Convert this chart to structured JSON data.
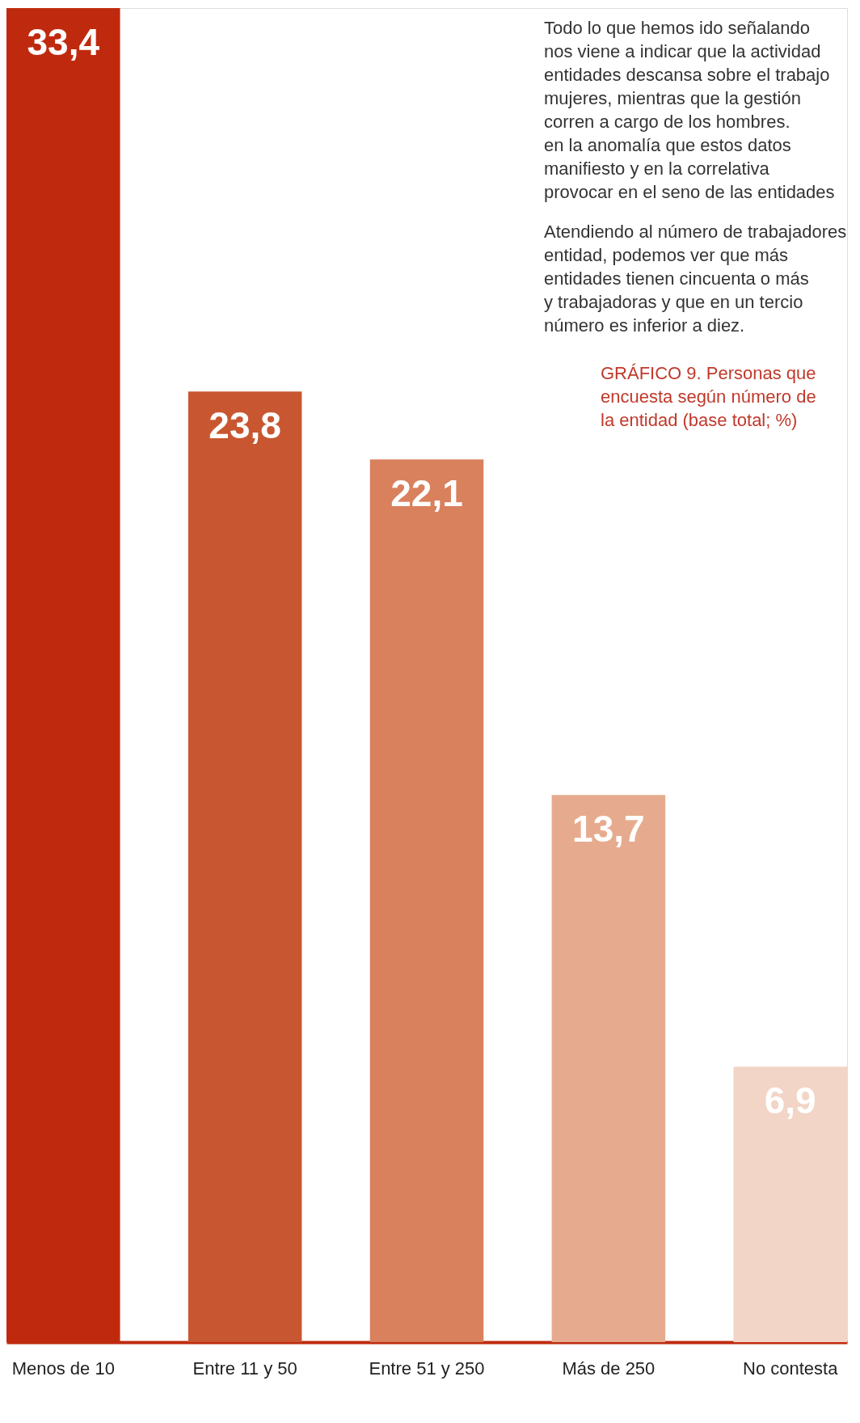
{
  "chart_data": {
    "type": "bar",
    "categories": [
      "Menos de 10",
      "Entre 11 y 50",
      "Entre 51 y 250",
      "Más de 250",
      "No contesta"
    ],
    "values": [
      33.4,
      23.8,
      22.1,
      13.7,
      6.9
    ],
    "colors": [
      "#bf2a0e",
      "#c85731",
      "#d9805d",
      "#e6ab8e",
      "#f2d5c6"
    ],
    "value_labels": [
      "33,4",
      "23,8",
      "22,1",
      "13,7",
      "6,9"
    ],
    "grid": false,
    "tick_labels": "x",
    "title": "GRÁFICO 9. Personas que\nencuesta según número de\nla entidad (base total; %)",
    "annotations": [
      "Todo lo que hemos ido señalando\nnos viene a indicar que la actividad\nentidades descansa sobre el trabajo\nmujeres, mientras que la gestión\ncorren a cargo de los hombres.\nen la anomalía que estos datos\nmanifiesto y en la correlativa\nprovocar en el seno de las entidades",
      "Atendiendo al número de trabajadores\nentidad, podemos ver que más\nentidades tienen cincuenta o más\ny trabajadoras y que en un tercio\nnúmero es inferior a diez."
    ]
  }
}
